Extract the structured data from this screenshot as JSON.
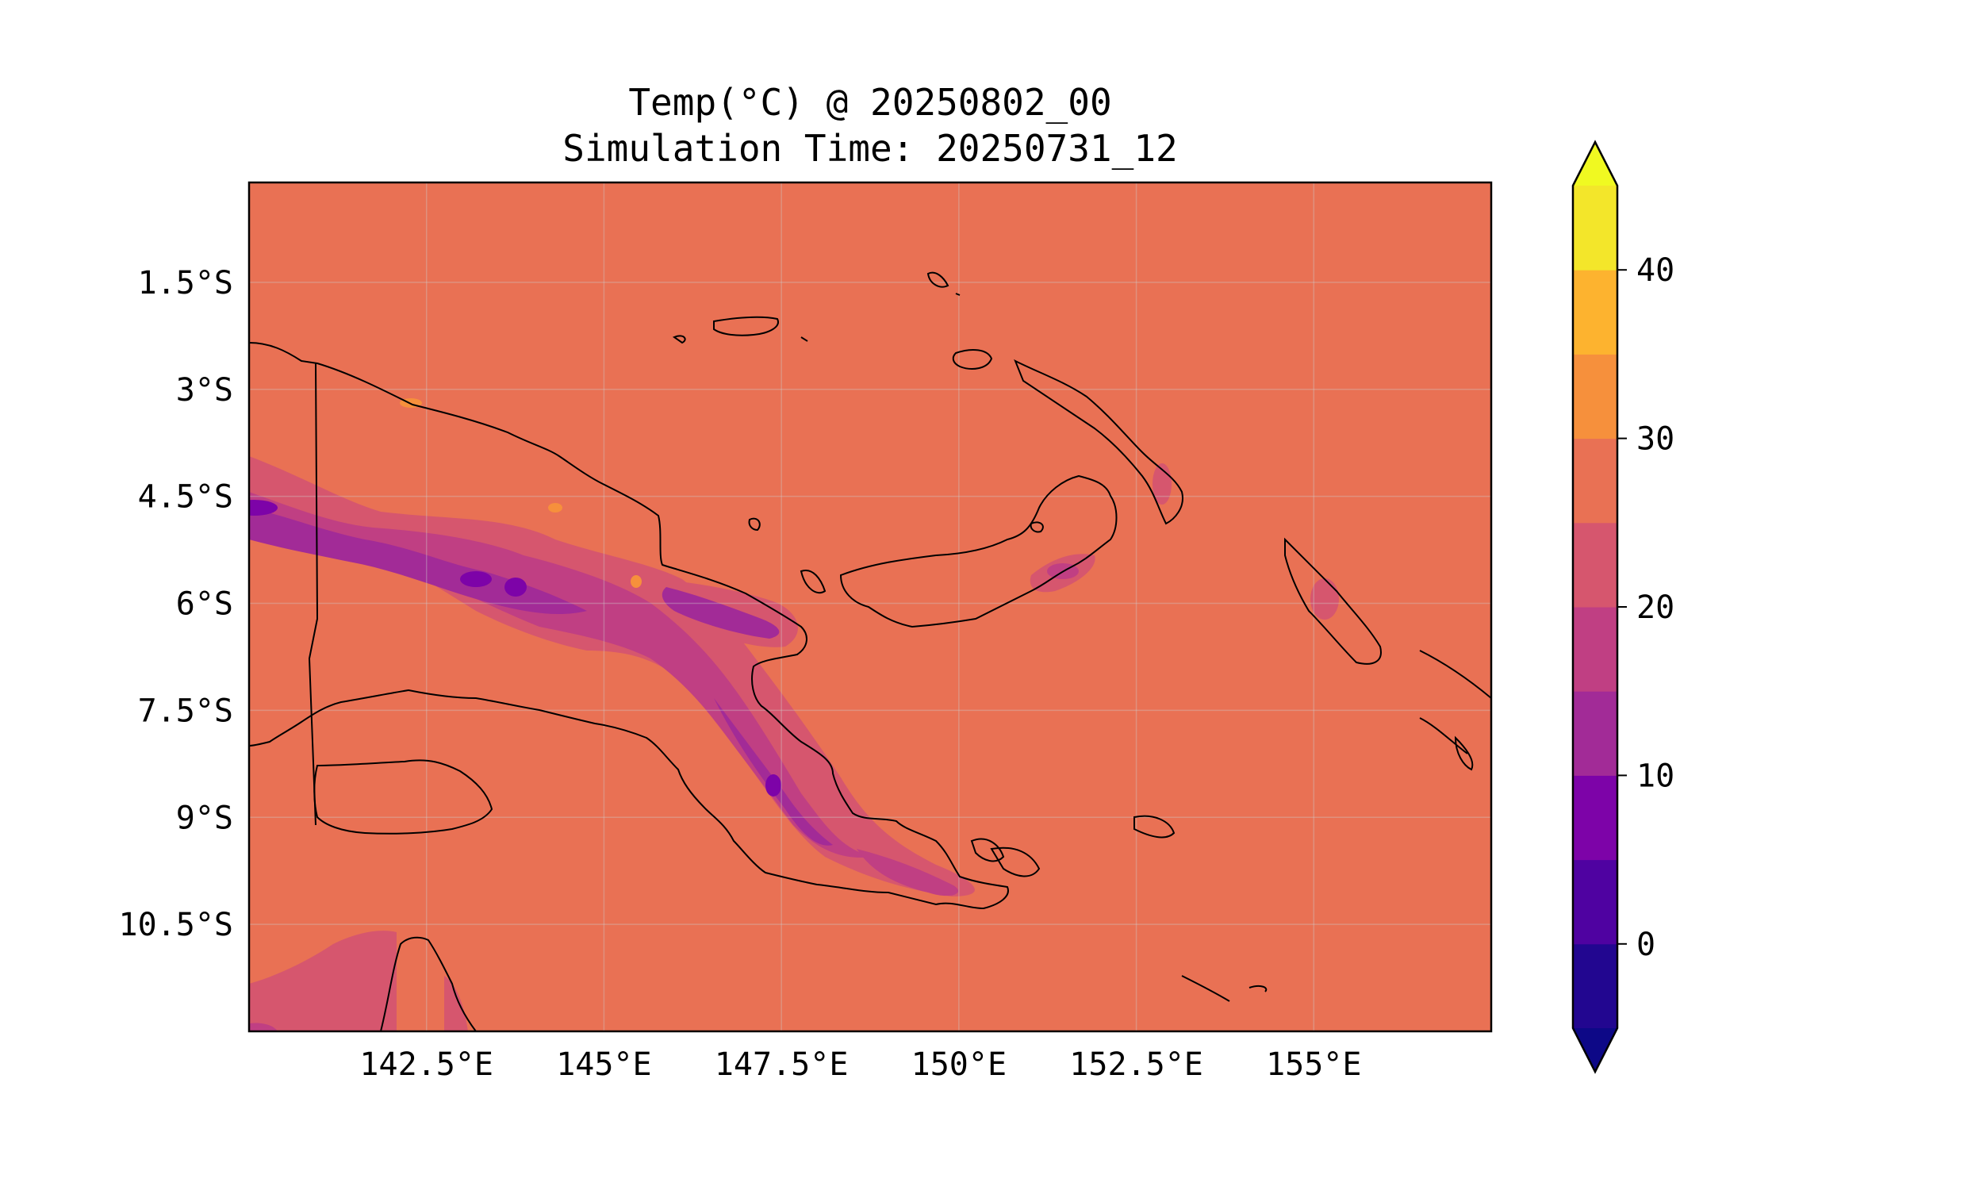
{
  "title": {
    "line1": "Temp(°C) @ 20250802_00",
    "line2": "Simulation Time: 20250731_12"
  },
  "map": {
    "extent": {
      "lon_min": 140.0,
      "lon_max": 157.5,
      "lat_min": -12.0,
      "lat_max": -0.1
    },
    "lon_ticks": [
      {
        "value": 142.5,
        "label": "142.5°E"
      },
      {
        "value": 145.0,
        "label": "145°E"
      },
      {
        "value": 147.5,
        "label": "147.5°E"
      },
      {
        "value": 150.0,
        "label": "150°E"
      },
      {
        "value": 152.5,
        "label": "152.5°E"
      },
      {
        "value": 155.0,
        "label": "155°E"
      }
    ],
    "lat_ticks": [
      {
        "value": -1.5,
        "label": "1.5°S"
      },
      {
        "value": -3.0,
        "label": "3°S"
      },
      {
        "value": -4.5,
        "label": "4.5°S"
      },
      {
        "value": -6.0,
        "label": "6°S"
      },
      {
        "value": -7.5,
        "label": "7.5°S"
      },
      {
        "value": -9.0,
        "label": "9°S"
      },
      {
        "value": -10.5,
        "label": "10.5°S"
      }
    ],
    "gridlines": true,
    "background_value_range": "25–30 °C"
  },
  "colorbar": {
    "extend": "both",
    "levels": [
      -5,
      0,
      5,
      10,
      15,
      20,
      25,
      30,
      35,
      40,
      45
    ],
    "colors": [
      "#220690",
      "#4f02a1",
      "#7d03a8",
      "#a22b97",
      "#c03f83",
      "#d6566e",
      "#e97154",
      "#f6903c",
      "#fdb32f",
      "#f3e62a"
    ],
    "under_color": "#0d0887",
    "over_color": "#f0f921",
    "ticks": [
      {
        "value": 0,
        "label": "0"
      },
      {
        "value": 10,
        "label": "10"
      },
      {
        "value": 20,
        "label": "20"
      },
      {
        "value": 30,
        "label": "30"
      },
      {
        "value": 40,
        "label": "40"
      }
    ]
  },
  "colors": {
    "field_25_30": "#e97154",
    "field_20_25": "#d6566e",
    "field_15_20": "#c03f83",
    "field_10_15": "#a22b97",
    "field_5_10": "#7d03a8",
    "field_30_35": "#f6903c",
    "coastline": "#000000"
  }
}
